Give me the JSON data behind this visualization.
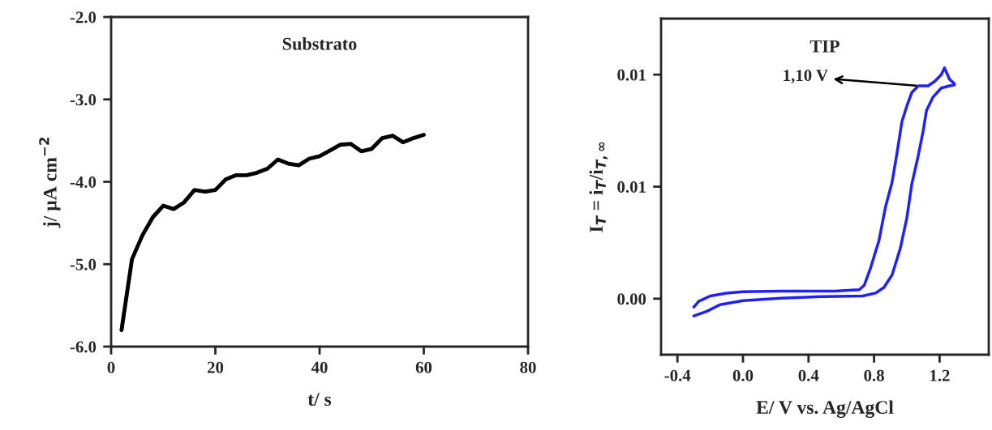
{
  "chart_data": [
    {
      "type": "line",
      "title": "Substrato",
      "xlabel": "t/ s",
      "ylabel": "j/ µA cm$^{−2}$",
      "x": [
        2,
        4,
        6,
        8,
        10,
        12,
        14,
        16,
        18,
        20,
        22,
        24,
        26,
        28,
        30,
        32,
        34,
        36,
        38,
        40,
        42,
        44,
        46,
        48,
        50,
        52,
        54,
        56,
        58,
        60
      ],
      "series": [
        {
          "color": "#000000",
          "values": [
            -5.8,
            -4.94,
            -4.65,
            -4.43,
            -4.29,
            -4.33,
            -4.25,
            -4.1,
            -4.12,
            -4.1,
            -3.97,
            -3.92,
            -3.92,
            -3.89,
            -3.84,
            -3.73,
            -3.78,
            -3.8,
            -3.72,
            -3.69,
            -3.62,
            -3.55,
            -3.54,
            -3.63,
            -3.6,
            -3.47,
            -3.44,
            -3.52,
            -3.47,
            -3.43
          ]
        }
      ],
      "xlim": [
        0,
        80
      ],
      "xticks": [
        0,
        20,
        40,
        60,
        80
      ],
      "ylim": [
        -6,
        -2
      ],
      "yticks": [
        {
          "value": -6,
          "label": "-6.0"
        },
        {
          "value": -5,
          "label": "-5.0"
        },
        {
          "value": -4,
          "label": "-4.0"
        },
        {
          "value": -3,
          "label": "-3.0"
        },
        {
          "value": -2,
          "label": "-2.0"
        }
      ],
      "grid": false,
      "legend": false,
      "marker": "none",
      "line_style": "solid"
    },
    {
      "type": "line",
      "title": "TIP",
      "xlabel": "E/ V vs. Ag/AgCl",
      "ylabel": "I$_{T}$ = i$_{T}$/i$_{T,∞}$",
      "series": [
        {
          "color": "#1f1fff",
          "x": [
            -0.3,
            -0.22,
            -0.14,
            0.0,
            0.23,
            0.48,
            0.73,
            0.81,
            0.86,
            0.91,
            0.96,
            1.0,
            1.03,
            1.07,
            1.1,
            1.12,
            1.16,
            1.21,
            1.26,
            1.29,
            1.29,
            1.26,
            1.23,
            1.21,
            1.17,
            1.13,
            1.07,
            1.03,
            1.0,
            0.97,
            0.94,
            0.91,
            0.87,
            0.83,
            0.78,
            0.74,
            0.71,
            0.56,
            0.23,
            0.0,
            -0.1,
            -0.2,
            -0.27,
            -0.3
          ],
          "values": [
            -0.00077,
            -0.00056,
            -0.00027,
            -9e-05,
            2e-05,
            9e-05,
            0.00012,
            0.00025,
            0.0005,
            0.00106,
            0.00224,
            0.0036,
            0.0051,
            0.0064,
            0.0075,
            0.0084,
            0.009,
            0.0094,
            0.0095,
            0.00954,
            0.0096,
            0.0098,
            0.0103,
            0.01,
            0.0097,
            0.0095,
            0.0095,
            0.0092,
            0.0086,
            0.0079,
            0.0065,
            0.0052,
            0.0041,
            0.0026,
            0.0014,
            0.0006,
            0.0004,
            0.00034,
            0.00034,
            0.00031,
            0.00025,
            0.00012,
            -0.00012,
            -0.00037
          ]
        }
      ],
      "annotations": [
        {
          "text": "1,10 V",
          "x": 1.07,
          "y": 0.0095
        }
      ],
      "xlim": [
        -0.5,
        1.5
      ],
      "xticks": [
        {
          "value": -0.4,
          "label": "-0.4"
        },
        {
          "value": 0.0,
          "label": "0.0"
        },
        {
          "value": 0.4,
          "label": "0.4"
        },
        {
          "value": 0.8,
          "label": "0.8"
        },
        {
          "value": 1.2,
          "label": "1.2"
        }
      ],
      "ylim": [
        -0.0025,
        0.0125
      ],
      "yticks": [
        {
          "value": 0,
          "label": "0.00"
        },
        {
          "value": 0.005,
          "label": "0.01"
        },
        {
          "value": 0.01,
          "label": "0.01"
        }
      ],
      "grid": false,
      "legend": false,
      "marker": "none",
      "line_style": "solid"
    }
  ]
}
